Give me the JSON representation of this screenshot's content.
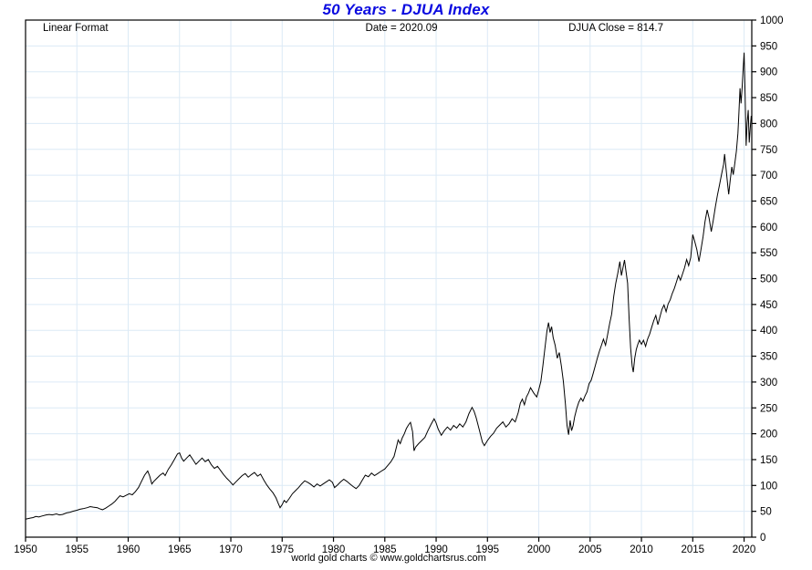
{
  "title": "50 Years - DJUA Index",
  "annotations": {
    "top_left": "Linear Format",
    "top_center": "Date = 2020.09",
    "top_right": "DJUA Close = 814.7"
  },
  "footer": "world gold charts © www.goldchartsrus.com",
  "colors": {
    "title": "#0a0ae0",
    "line": "#000000",
    "grid": "#dceaf6",
    "frame": "#000000",
    "background": "#ffffff"
  },
  "chart_data": {
    "type": "line",
    "title": "50 Years - DJUA Index",
    "xlabel": "",
    "ylabel": "",
    "xlim": [
      1950,
      2020.75
    ],
    "ylim": [
      0,
      1000
    ],
    "grid": true,
    "legend": "none",
    "x_ticks": [
      1950,
      1955,
      1960,
      1965,
      1970,
      1975,
      1980,
      1985,
      1990,
      1995,
      2000,
      2005,
      2010,
      2015,
      2020
    ],
    "y_ticks": [
      0,
      50,
      100,
      150,
      200,
      250,
      300,
      350,
      400,
      450,
      500,
      550,
      600,
      650,
      700,
      750,
      800,
      850,
      900,
      950,
      1000
    ],
    "last_date": "2020.09",
    "last_close": 814.7,
    "series": [
      {
        "name": "DJUA Index",
        "points": [
          [
            1950.0,
            35
          ],
          [
            1950.25,
            36
          ],
          [
            1950.5,
            37
          ],
          [
            1950.75,
            38
          ],
          [
            1951.0,
            40
          ],
          [
            1951.3,
            39
          ],
          [
            1951.6,
            41
          ],
          [
            1952.0,
            43
          ],
          [
            1952.3,
            44
          ],
          [
            1952.6,
            43
          ],
          [
            1953.0,
            45
          ],
          [
            1953.3,
            43
          ],
          [
            1953.6,
            44
          ],
          [
            1954.0,
            47
          ],
          [
            1954.3,
            48
          ],
          [
            1954.6,
            50
          ],
          [
            1955.0,
            52
          ],
          [
            1955.3,
            54
          ],
          [
            1955.6,
            55
          ],
          [
            1956.0,
            57
          ],
          [
            1956.3,
            59
          ],
          [
            1956.6,
            58
          ],
          [
            1957.0,
            57
          ],
          [
            1957.2,
            55
          ],
          [
            1957.5,
            53
          ],
          [
            1957.8,
            56
          ],
          [
            1958.1,
            60
          ],
          [
            1958.4,
            64
          ],
          [
            1958.7,
            69
          ],
          [
            1959.0,
            76
          ],
          [
            1959.2,
            80
          ],
          [
            1959.5,
            78
          ],
          [
            1959.8,
            81
          ],
          [
            1960.1,
            84
          ],
          [
            1960.4,
            82
          ],
          [
            1960.7,
            88
          ],
          [
            1961.0,
            96
          ],
          [
            1961.3,
            108
          ],
          [
            1961.6,
            120
          ],
          [
            1961.9,
            128
          ],
          [
            1962.1,
            118
          ],
          [
            1962.3,
            103
          ],
          [
            1962.5,
            108
          ],
          [
            1962.8,
            114
          ],
          [
            1963.1,
            120
          ],
          [
            1963.4,
            124
          ],
          [
            1963.6,
            119
          ],
          [
            1963.9,
            131
          ],
          [
            1964.2,
            140
          ],
          [
            1964.5,
            150
          ],
          [
            1964.8,
            161
          ],
          [
            1965.0,
            163
          ],
          [
            1965.2,
            153
          ],
          [
            1965.4,
            147
          ],
          [
            1965.7,
            153
          ],
          [
            1966.0,
            159
          ],
          [
            1966.3,
            150
          ],
          [
            1966.6,
            141
          ],
          [
            1966.9,
            147
          ],
          [
            1967.2,
            153
          ],
          [
            1967.5,
            146
          ],
          [
            1967.8,
            150
          ],
          [
            1968.1,
            140
          ],
          [
            1968.4,
            133
          ],
          [
            1968.7,
            137
          ],
          [
            1969.0,
            129
          ],
          [
            1969.3,
            121
          ],
          [
            1969.6,
            114
          ],
          [
            1969.9,
            108
          ],
          [
            1970.2,
            101
          ],
          [
            1970.5,
            107
          ],
          [
            1970.8,
            113
          ],
          [
            1971.1,
            119
          ],
          [
            1971.4,
            123
          ],
          [
            1971.7,
            116
          ],
          [
            1972.0,
            121
          ],
          [
            1972.3,
            125
          ],
          [
            1972.6,
            118
          ],
          [
            1972.9,
            122
          ],
          [
            1973.2,
            111
          ],
          [
            1973.5,
            101
          ],
          [
            1973.8,
            93
          ],
          [
            1974.1,
            86
          ],
          [
            1974.4,
            76
          ],
          [
            1974.6,
            66
          ],
          [
            1974.8,
            57
          ],
          [
            1975.0,
            63
          ],
          [
            1975.2,
            71
          ],
          [
            1975.4,
            67
          ],
          [
            1975.7,
            75
          ],
          [
            1976.0,
            84
          ],
          [
            1976.3,
            90
          ],
          [
            1976.6,
            96
          ],
          [
            1976.9,
            103
          ],
          [
            1977.2,
            109
          ],
          [
            1977.5,
            106
          ],
          [
            1977.8,
            102
          ],
          [
            1978.1,
            97
          ],
          [
            1978.4,
            103
          ],
          [
            1978.7,
            99
          ],
          [
            1979.0,
            103
          ],
          [
            1979.3,
            107
          ],
          [
            1979.6,
            111
          ],
          [
            1979.9,
            106
          ],
          [
            1980.1,
            96
          ],
          [
            1980.4,
            101
          ],
          [
            1980.7,
            107
          ],
          [
            1981.0,
            112
          ],
          [
            1981.3,
            108
          ],
          [
            1981.6,
            103
          ],
          [
            1981.9,
            98
          ],
          [
            1982.2,
            94
          ],
          [
            1982.5,
            100
          ],
          [
            1982.8,
            110
          ],
          [
            1983.1,
            120
          ],
          [
            1983.4,
            117
          ],
          [
            1983.7,
            124
          ],
          [
            1984.0,
            119
          ],
          [
            1984.3,
            123
          ],
          [
            1984.6,
            127
          ],
          [
            1985.0,
            132
          ],
          [
            1985.3,
            139
          ],
          [
            1985.6,
            146
          ],
          [
            1985.9,
            156
          ],
          [
            1986.1,
            172
          ],
          [
            1986.3,
            188
          ],
          [
            1986.5,
            181
          ],
          [
            1986.7,
            192
          ],
          [
            1986.9,
            200
          ],
          [
            1987.1,
            210
          ],
          [
            1987.3,
            217
          ],
          [
            1987.5,
            222
          ],
          [
            1987.7,
            204
          ],
          [
            1987.85,
            167
          ],
          [
            1988.0,
            174
          ],
          [
            1988.3,
            181
          ],
          [
            1988.6,
            187
          ],
          [
            1988.9,
            193
          ],
          [
            1989.2,
            206
          ],
          [
            1989.5,
            218
          ],
          [
            1989.8,
            229
          ],
          [
            1990.0,
            221
          ],
          [
            1990.2,
            209
          ],
          [
            1990.5,
            197
          ],
          [
            1990.8,
            206
          ],
          [
            1991.1,
            213
          ],
          [
            1991.4,
            207
          ],
          [
            1991.7,
            216
          ],
          [
            1992.0,
            211
          ],
          [
            1992.3,
            219
          ],
          [
            1992.6,
            213
          ],
          [
            1992.9,
            223
          ],
          [
            1993.2,
            239
          ],
          [
            1993.5,
            251
          ],
          [
            1993.7,
            243
          ],
          [
            1993.9,
            231
          ],
          [
            1994.2,
            208
          ],
          [
            1994.5,
            184
          ],
          [
            1994.7,
            177
          ],
          [
            1995.0,
            187
          ],
          [
            1995.3,
            195
          ],
          [
            1995.6,
            201
          ],
          [
            1995.9,
            211
          ],
          [
            1996.2,
            217
          ],
          [
            1996.5,
            223
          ],
          [
            1996.8,
            213
          ],
          [
            1997.1,
            219
          ],
          [
            1997.4,
            229
          ],
          [
            1997.7,
            223
          ],
          [
            1998.0,
            241
          ],
          [
            1998.2,
            259
          ],
          [
            1998.4,
            267
          ],
          [
            1998.6,
            256
          ],
          [
            1998.8,
            271
          ],
          [
            1999.0,
            279
          ],
          [
            1999.2,
            289
          ],
          [
            1999.5,
            279
          ],
          [
            1999.8,
            271
          ],
          [
            2000.0,
            285
          ],
          [
            2000.2,
            301
          ],
          [
            2000.4,
            331
          ],
          [
            2000.6,
            366
          ],
          [
            2000.8,
            399
          ],
          [
            2000.95,
            415
          ],
          [
            2001.1,
            396
          ],
          [
            2001.25,
            407
          ],
          [
            2001.4,
            386
          ],
          [
            2001.6,
            371
          ],
          [
            2001.8,
            346
          ],
          [
            2002.0,
            357
          ],
          [
            2002.2,
            331
          ],
          [
            2002.4,
            301
          ],
          [
            2002.6,
            256
          ],
          [
            2002.75,
            216
          ],
          [
            2002.9,
            198
          ],
          [
            2003.05,
            226
          ],
          [
            2003.2,
            206
          ],
          [
            2003.35,
            216
          ],
          [
            2003.5,
            233
          ],
          [
            2003.7,
            249
          ],
          [
            2003.9,
            261
          ],
          [
            2004.1,
            269
          ],
          [
            2004.3,
            263
          ],
          [
            2004.5,
            273
          ],
          [
            2004.7,
            281
          ],
          [
            2004.9,
            297
          ],
          [
            2005.1,
            303
          ],
          [
            2005.3,
            317
          ],
          [
            2005.5,
            331
          ],
          [
            2005.7,
            346
          ],
          [
            2005.9,
            359
          ],
          [
            2006.1,
            371
          ],
          [
            2006.3,
            383
          ],
          [
            2006.5,
            371
          ],
          [
            2006.7,
            391
          ],
          [
            2006.9,
            413
          ],
          [
            2007.1,
            431
          ],
          [
            2007.3,
            466
          ],
          [
            2007.5,
            491
          ],
          [
            2007.7,
            511
          ],
          [
            2007.9,
            533
          ],
          [
            2008.05,
            506
          ],
          [
            2008.2,
            521
          ],
          [
            2008.35,
            536
          ],
          [
            2008.5,
            513
          ],
          [
            2008.65,
            491
          ],
          [
            2008.8,
            421
          ],
          [
            2008.95,
            366
          ],
          [
            2009.1,
            331
          ],
          [
            2009.2,
            319
          ],
          [
            2009.35,
            346
          ],
          [
            2009.5,
            363
          ],
          [
            2009.65,
            373
          ],
          [
            2009.8,
            381
          ],
          [
            2010.0,
            373
          ],
          [
            2010.2,
            381
          ],
          [
            2010.4,
            369
          ],
          [
            2010.6,
            383
          ],
          [
            2010.8,
            393
          ],
          [
            2011.0,
            406
          ],
          [
            2011.2,
            419
          ],
          [
            2011.4,
            429
          ],
          [
            2011.6,
            411
          ],
          [
            2011.8,
            426
          ],
          [
            2012.0,
            441
          ],
          [
            2012.2,
            449
          ],
          [
            2012.4,
            436
          ],
          [
            2012.6,
            451
          ],
          [
            2012.8,
            459
          ],
          [
            2013.0,
            471
          ],
          [
            2013.2,
            481
          ],
          [
            2013.4,
            493
          ],
          [
            2013.6,
            506
          ],
          [
            2013.8,
            497
          ],
          [
            2014.0,
            509
          ],
          [
            2014.2,
            521
          ],
          [
            2014.4,
            537
          ],
          [
            2014.6,
            525
          ],
          [
            2014.8,
            541
          ],
          [
            2015.0,
            585
          ],
          [
            2015.2,
            571
          ],
          [
            2015.4,
            556
          ],
          [
            2015.6,
            533
          ],
          [
            2015.8,
            556
          ],
          [
            2016.0,
            581
          ],
          [
            2016.2,
            611
          ],
          [
            2016.4,
            633
          ],
          [
            2016.6,
            616
          ],
          [
            2016.8,
            591
          ],
          [
            2017.0,
            613
          ],
          [
            2017.2,
            639
          ],
          [
            2017.4,
            661
          ],
          [
            2017.6,
            681
          ],
          [
            2017.8,
            701
          ],
          [
            2018.0,
            721
          ],
          [
            2018.1,
            741
          ],
          [
            2018.25,
            711
          ],
          [
            2018.4,
            681
          ],
          [
            2018.5,
            663
          ],
          [
            2018.65,
            691
          ],
          [
            2018.8,
            716
          ],
          [
            2018.95,
            701
          ],
          [
            2019.1,
            723
          ],
          [
            2019.25,
            746
          ],
          [
            2019.4,
            781
          ],
          [
            2019.5,
            821
          ],
          [
            2019.6,
            868
          ],
          [
            2019.7,
            839
          ],
          [
            2019.8,
            866
          ],
          [
            2019.9,
            901
          ],
          [
            2020.0,
            937
          ],
          [
            2020.1,
            856
          ],
          [
            2020.2,
            757
          ],
          [
            2020.3,
            801
          ],
          [
            2020.4,
            826
          ],
          [
            2020.5,
            763
          ],
          [
            2020.6,
            791
          ],
          [
            2020.7,
            814.7
          ]
        ]
      }
    ]
  }
}
